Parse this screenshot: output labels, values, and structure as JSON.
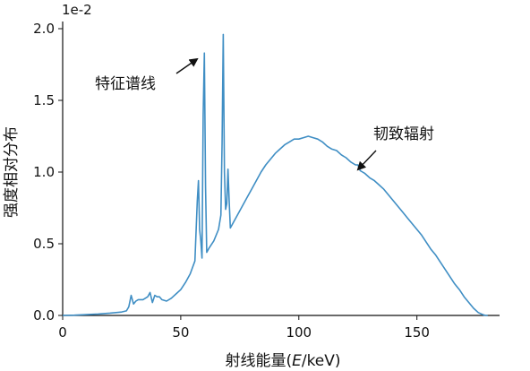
{
  "chart_data": {
    "type": "line",
    "xlabel_prefix": "射线能量(",
    "xlabel_var": "E",
    "xlabel_suffix": "/keV)",
    "ylabel": "强度相对分布",
    "y_exponent_label": "1e-2",
    "xlim": [
      0,
      185
    ],
    "ylim": [
      0,
      2.05
    ],
    "xticks": [
      0,
      50,
      100,
      150
    ],
    "yticks": [
      0.0,
      0.5,
      1.0,
      1.5,
      2.0
    ],
    "xtick_labels": [
      "0",
      "50",
      "100",
      "150"
    ],
    "ytick_labels": [
      "0.0",
      "0.5",
      "1.0",
      "1.5",
      "2.0"
    ],
    "line_color": "#3f8ec4",
    "grid": false,
    "annotations": [
      {
        "name": "characteristic-lines",
        "text": "特征谱线",
        "target": [
          59.5,
          1.83
        ]
      },
      {
        "name": "bremsstrahlung",
        "text": "韧致辐射",
        "target": [
          125,
          1.02
        ]
      }
    ],
    "series": [
      {
        "x": [
          0,
          5,
          10,
          15,
          20,
          25,
          27,
          28,
          29,
          30,
          31,
          32,
          34,
          36,
          37,
          38,
          39,
          40,
          41,
          42,
          44,
          46,
          48,
          50,
          52,
          54,
          56,
          57,
          57.5,
          58,
          58.5,
          59,
          59.5,
          60,
          60.5,
          61,
          62,
          64,
          66,
          67,
          67.5,
          68,
          68.5,
          69,
          69.5,
          70,
          70.5,
          71,
          72,
          74,
          76,
          78,
          80,
          82,
          84,
          86,
          88,
          90,
          92,
          94,
          96,
          98,
          100,
          102,
          104,
          106,
          108,
          110,
          112,
          114,
          116,
          118,
          120,
          122,
          124,
          125,
          126,
          127,
          128,
          130,
          132,
          134,
          136,
          138,
          140,
          142,
          144,
          146,
          148,
          150,
          152,
          154,
          156,
          158,
          160,
          162,
          164,
          166,
          168,
          170,
          172,
          174,
          176,
          178,
          179,
          180
        ],
        "y": [
          0.0,
          0.002,
          0.006,
          0.01,
          0.016,
          0.024,
          0.032,
          0.06,
          0.14,
          0.08,
          0.1,
          0.11,
          0.11,
          0.13,
          0.16,
          0.09,
          0.14,
          0.13,
          0.13,
          0.11,
          0.1,
          0.12,
          0.15,
          0.18,
          0.23,
          0.29,
          0.38,
          0.8,
          0.94,
          0.6,
          0.52,
          0.4,
          1.4,
          1.83,
          0.9,
          0.44,
          0.47,
          0.52,
          0.6,
          0.7,
          1.2,
          1.96,
          1.0,
          0.74,
          0.78,
          1.02,
          0.8,
          0.61,
          0.64,
          0.7,
          0.76,
          0.82,
          0.88,
          0.94,
          1.0,
          1.05,
          1.09,
          1.13,
          1.16,
          1.19,
          1.21,
          1.23,
          1.23,
          1.24,
          1.25,
          1.24,
          1.23,
          1.21,
          1.18,
          1.16,
          1.15,
          1.12,
          1.1,
          1.07,
          1.05,
          1.05,
          1.01,
          1.0,
          0.99,
          0.96,
          0.94,
          0.91,
          0.88,
          0.84,
          0.8,
          0.76,
          0.72,
          0.68,
          0.64,
          0.6,
          0.56,
          0.51,
          0.46,
          0.42,
          0.37,
          0.32,
          0.27,
          0.22,
          0.18,
          0.13,
          0.09,
          0.05,
          0.02,
          0.005,
          0.0,
          0.0
        ]
      }
    ]
  }
}
